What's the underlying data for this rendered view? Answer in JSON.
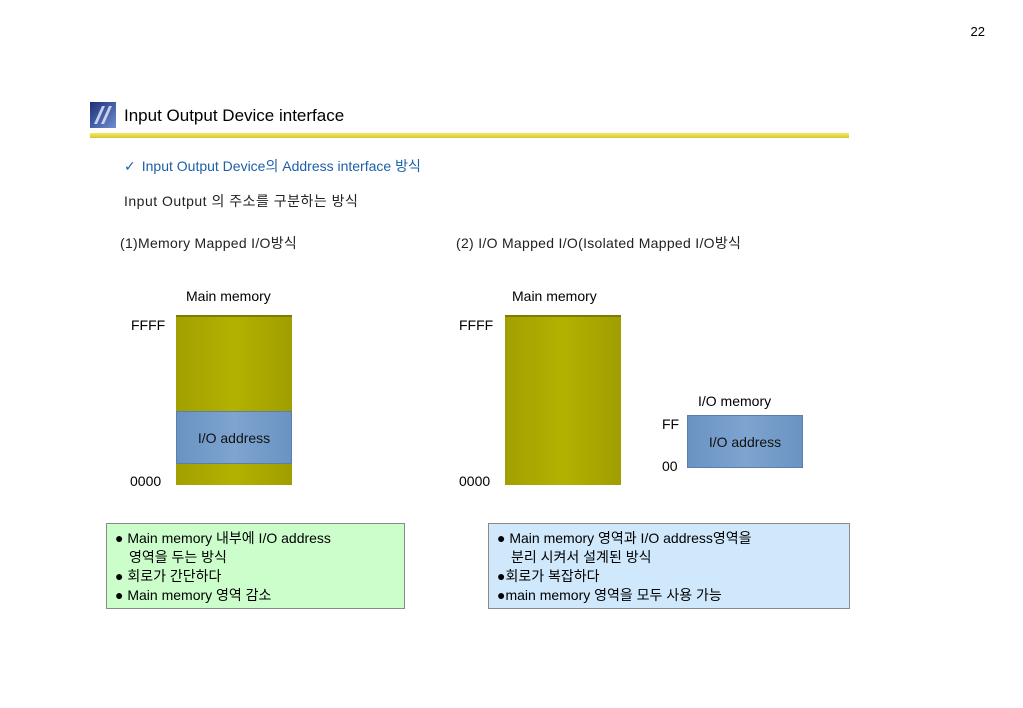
{
  "page_number": "22",
  "title": "Input Output Device interface",
  "subtitle": "Input Output Device의 Address interface 방식",
  "description": "Input Output 의 주소를 구분하는 방식",
  "left_diagram": {
    "caption": "(1)Memory Mapped I/O방식",
    "main_label": "Main memory",
    "top_address": "FFFF",
    "bottom_address": "0000",
    "io_block_label": "I/O address"
  },
  "right_diagram": {
    "caption": "(2) I/O Mapped I/O(Isolated  Mapped I/O방식",
    "main_label": "Main memory",
    "top_address": "FFFF",
    "bottom_address": "0000",
    "io_memory_label": "I/O memory",
    "io_top_address": "FF",
    "io_bottom_address": "00",
    "io_block_label": "I/O address"
  },
  "notes_left": [
    "● Main memory 내부에 I/O address",
    "영역을 두는 방식",
    "● 회로가 간단하다",
    "● Main memory 영역 감소"
  ],
  "notes_right": [
    "● Main memory 영역과 I/O address영역을",
    "분리 시켜서 설계된 방식",
    "●회로가 복잡하다",
    "●main memory 영역을 모두 사용 가능"
  ],
  "colors": {
    "main_memory": "#a8a600",
    "io_address": "#759cc9",
    "notes_left_bg": "#ccfecc",
    "notes_right_bg": "#cfe8fb",
    "subtitle": "#1d5fa8"
  }
}
